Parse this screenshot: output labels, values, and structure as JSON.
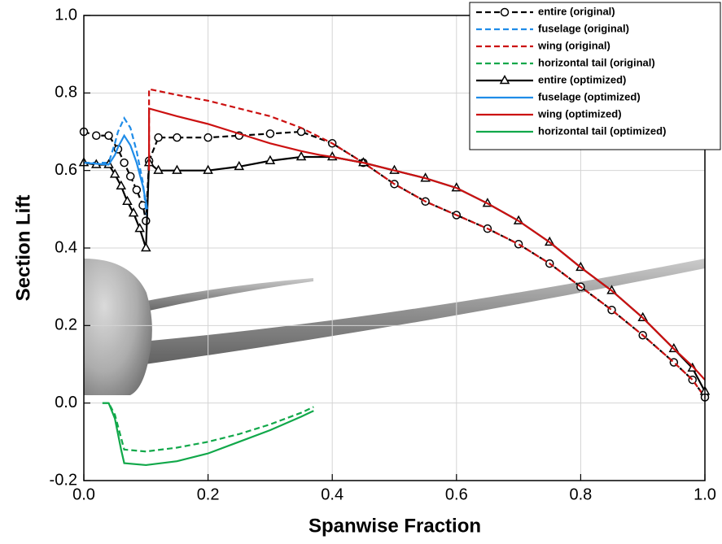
{
  "chart_data": {
    "type": "line",
    "x_label": "Spanwise Fraction",
    "y_label": "Section Lift",
    "xlim": [
      0,
      1
    ],
    "ylim": [
      -0.2,
      1
    ],
    "xticks": [
      {
        "value": 0,
        "label": "0.0"
      },
      0.2,
      0.4,
      0.6,
      0.8,
      {
        "value": 1,
        "label": "1.0"
      }
    ],
    "yticks": [
      -0.2,
      {
        "value": 0,
        "label": "0.0"
      },
      0.2,
      0.4,
      0.6,
      0.8,
      {
        "value": 1,
        "label": "1.0"
      }
    ],
    "grid": true,
    "legend": "top-right",
    "series": [
      {
        "name": "entire (original)",
        "color": "#000000",
        "dashed": true,
        "marker": "circle",
        "x": [
          0,
          0.02,
          0.04,
          0.055,
          0.065,
          0.075,
          0.085,
          0.095,
          0.1,
          0.105,
          0.12,
          0.15,
          0.2,
          0.25,
          0.3,
          0.35,
          0.4,
          0.45,
          0.5,
          0.55,
          0.6,
          0.65,
          0.7,
          0.75,
          0.8,
          0.85,
          0.9,
          0.95,
          0.98,
          1
        ],
        "values": [
          0.7,
          0.69,
          0.69,
          0.655,
          0.62,
          0.585,
          0.55,
          0.51,
          0.47,
          0.625,
          0.685,
          0.685,
          0.685,
          0.69,
          0.695,
          0.7,
          0.67,
          0.62,
          0.565,
          0.52,
          0.485,
          0.45,
          0.41,
          0.36,
          0.3,
          0.24,
          0.175,
          0.105,
          0.06,
          0.015
        ]
      },
      {
        "name": "fuselage (original)",
        "color": "#1f8ce8",
        "dashed": true,
        "x": [
          0,
          0.04,
          0.05,
          0.055,
          0.065,
          0.075,
          0.085,
          0.095,
          0.1,
          0.102
        ],
        "values": [
          0.62,
          0.62,
          0.67,
          0.7,
          0.735,
          0.71,
          0.65,
          0.57,
          0.5,
          0.48
        ]
      },
      {
        "name": "wing (original)",
        "color": "#cc1111",
        "dashed": true,
        "x": [
          0.105,
          0.105,
          0.15,
          0.2,
          0.25,
          0.3,
          0.35,
          0.4,
          0.45,
          0.5,
          0.55,
          0.6,
          0.65,
          0.7,
          0.75,
          0.8,
          0.85,
          0.9,
          0.95,
          0.98,
          1
        ],
        "values": [
          0.63,
          0.81,
          0.795,
          0.78,
          0.76,
          0.74,
          0.71,
          0.67,
          0.62,
          0.565,
          0.52,
          0.485,
          0.45,
          0.41,
          0.36,
          0.3,
          0.24,
          0.175,
          0.105,
          0.06,
          0.015
        ]
      },
      {
        "name": "horizontal tail (original)",
        "color": "#11a84a",
        "dashed": true,
        "x": [
          0.03,
          0.04,
          0.05,
          0.06,
          0.065,
          0.1,
          0.15,
          0.2,
          0.25,
          0.3,
          0.35,
          0.37
        ],
        "values": [
          0,
          0,
          -0.03,
          -0.09,
          -0.12,
          -0.125,
          -0.115,
          -0.1,
          -0.08,
          -0.055,
          -0.025,
          -0.01
        ]
      },
      {
        "name": "entire (optimized)",
        "color": "#000000",
        "dashed": false,
        "marker": "triangle",
        "x": [
          0,
          0.02,
          0.04,
          0.05,
          0.06,
          0.07,
          0.08,
          0.09,
          0.1,
          0.105,
          0.12,
          0.15,
          0.2,
          0.25,
          0.3,
          0.35,
          0.4,
          0.45,
          0.5,
          0.55,
          0.6,
          0.65,
          0.7,
          0.75,
          0.8,
          0.85,
          0.9,
          0.95,
          0.98,
          1
        ],
        "values": [
          0.62,
          0.615,
          0.615,
          0.59,
          0.56,
          0.52,
          0.49,
          0.45,
          0.4,
          0.62,
          0.6,
          0.6,
          0.6,
          0.61,
          0.625,
          0.635,
          0.635,
          0.62,
          0.6,
          0.58,
          0.555,
          0.515,
          0.47,
          0.415,
          0.35,
          0.29,
          0.22,
          0.14,
          0.09,
          0.03
        ]
      },
      {
        "name": "fuselage (optimized)",
        "color": "#1f8ce8",
        "dashed": false,
        "x": [
          0,
          0.04,
          0.05,
          0.055,
          0.065,
          0.075,
          0.085,
          0.095,
          0.1,
          0.102
        ],
        "values": [
          0.62,
          0.615,
          0.64,
          0.66,
          0.69,
          0.665,
          0.62,
          0.56,
          0.52,
          0.5
        ]
      },
      {
        "name": "wing (optimized)",
        "color": "#cc1111",
        "dashed": false,
        "x": [
          0.105,
          0.105,
          0.15,
          0.2,
          0.25,
          0.3,
          0.35,
          0.38,
          0.4,
          0.45,
          0.5,
          0.55,
          0.6,
          0.65,
          0.7,
          0.75,
          0.8,
          0.85,
          0.9,
          0.95,
          0.98,
          1
        ],
        "values": [
          0.6,
          0.76,
          0.74,
          0.72,
          0.695,
          0.67,
          0.65,
          0.64,
          0.635,
          0.62,
          0.6,
          0.58,
          0.555,
          0.515,
          0.47,
          0.415,
          0.35,
          0.29,
          0.22,
          0.14,
          0.095,
          0.06
        ]
      },
      {
        "name": "horizontal tail (optimized)",
        "color": "#11a84a",
        "dashed": false,
        "x": [
          0.03,
          0.04,
          0.05,
          0.06,
          0.065,
          0.1,
          0.15,
          0.2,
          0.25,
          0.3,
          0.35,
          0.37
        ],
        "values": [
          0,
          0,
          -0.04,
          -0.12,
          -0.155,
          -0.16,
          -0.15,
          -0.13,
          -0.1,
          -0.07,
          -0.035,
          -0.02
        ]
      }
    ]
  }
}
